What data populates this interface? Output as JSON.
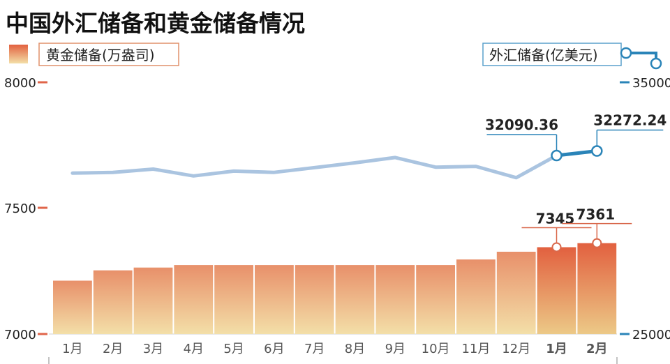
{
  "chart_data": {
    "type": "bar+line",
    "title": "中国外汇储备和黄金储备情况",
    "categories": [
      "1月",
      "2月",
      "3月",
      "4月",
      "5月",
      "6月",
      "7月",
      "8月",
      "9月",
      "10月",
      "11月",
      "12月",
      "1月",
      "2月"
    ],
    "series": [
      {
        "name": "黄金储备(万盎司)",
        "type": "bar",
        "axis": "left",
        "values": [
          7212,
          7253,
          7264,
          7274,
          7274,
          7274,
          7274,
          7274,
          7274,
          7274,
          7296,
          7327,
          7345,
          7361
        ]
      },
      {
        "name": "外汇储备(亿美元)",
        "type": "line",
        "axis": "right",
        "values": [
          31390,
          31420,
          31550,
          31280,
          31470,
          31420,
          31610,
          31800,
          32010,
          31630,
          31660,
          31210,
          32090.36,
          32272.24
        ]
      }
    ],
    "left_axis": {
      "ticks": [
        "8000",
        "7500",
        "7000"
      ],
      "range": [
        7000,
        8000
      ]
    },
    "right_axis": {
      "ticks": [
        "35000",
        "25000"
      ],
      "range": [
        25000,
        35000
      ]
    },
    "annotations": {
      "bar_values": [
        {
          "index": 12,
          "label": "7345"
        },
        {
          "index": 13,
          "label": "7361"
        }
      ],
      "line_values": [
        {
          "index": 12,
          "label": "32090.36"
        },
        {
          "index": 13,
          "label": "32272.24"
        }
      ]
    },
    "legend": {
      "left_placement": "top-left",
      "right_placement": "top-right"
    },
    "colors": {
      "bar_top": "#e8906a",
      "bar_bottom": "#f3dfa8",
      "bar_highlight_top": "#e2603f",
      "bar_highlight_bottom": "#ecc987",
      "line": "#aac4e0",
      "line_highlight": "#2a84b8",
      "left_tick": "#e0654a",
      "right_tick": "#2a84b8",
      "annot_bar": "#d9684b",
      "annot_line": "#2a84b8"
    },
    "grid": false
  }
}
